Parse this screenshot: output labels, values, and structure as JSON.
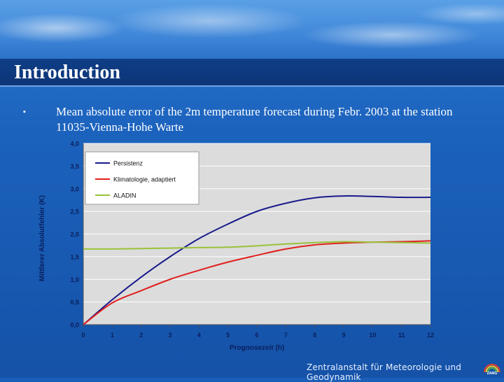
{
  "slide": {
    "title": "Introduction",
    "bullet_symbol": "▪",
    "caption": "Mean absolute error of the 2m temperature forecast during Febr. 2003 at the station 11035-Vienna-Hohe Warte",
    "footer": "Zentralanstalt für Meteorologie und Geodynamik",
    "logo_text": "ZAMG"
  },
  "colors": {
    "plot_background": "#dcdcdc",
    "gridline": "#ffffff",
    "persistenz": "#1a1a8c",
    "klimatologie": "#e0201e",
    "aladin": "#99c23a"
  },
  "chart_data": {
    "type": "line",
    "title": "",
    "xlabel": "Prognosezeit (h)",
    "ylabel": "Mittlerer Absolutfehler (K)",
    "xlim": [
      0,
      12
    ],
    "ylim": [
      0,
      4
    ],
    "x_ticks": [
      "0",
      "1",
      "2",
      "3",
      "4",
      "5",
      "6",
      "7",
      "8",
      "9",
      "10",
      "11",
      "12"
    ],
    "y_ticks": [
      "0,0",
      "0,5",
      "1,0",
      "1,5",
      "2,0",
      "2,5",
      "3,0",
      "3,5",
      "4,0"
    ],
    "grid": true,
    "legend_position": "top-left",
    "x": [
      0,
      1,
      2,
      3,
      4,
      5,
      6,
      7,
      8,
      9,
      10,
      11,
      12
    ],
    "series": [
      {
        "name": "Persistenz",
        "color": "#1a1a8c",
        "values": [
          0.0,
          0.55,
          1.05,
          1.5,
          1.9,
          2.22,
          2.5,
          2.68,
          2.8,
          2.84,
          2.83,
          2.81,
          2.81
        ]
      },
      {
        "name": "Klimatologie, adaptiert",
        "color": "#e0201e",
        "values": [
          0.0,
          0.48,
          0.75,
          1.0,
          1.2,
          1.38,
          1.53,
          1.67,
          1.76,
          1.8,
          1.82,
          1.83,
          1.85
        ]
      },
      {
        "name": "ALADIN",
        "color": "#99c23a",
        "values": [
          1.67,
          1.67,
          1.68,
          1.69,
          1.7,
          1.71,
          1.74,
          1.78,
          1.81,
          1.83,
          1.82,
          1.81,
          1.8
        ]
      }
    ]
  }
}
